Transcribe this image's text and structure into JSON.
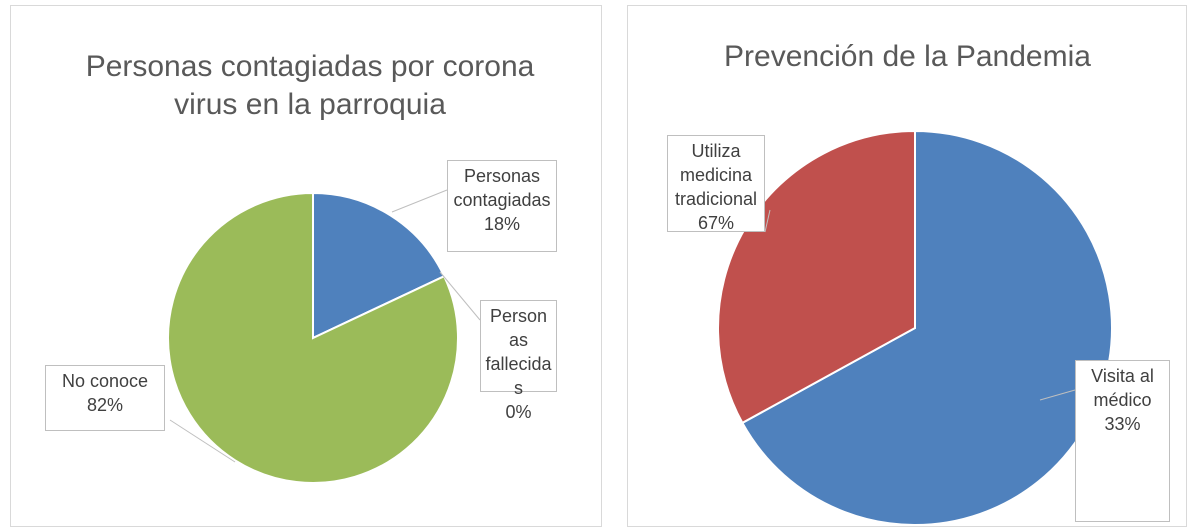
{
  "chart_data": [
    {
      "type": "pie",
      "title": "Personas contagiadas por corona virus en la parroquia",
      "categories": [
        "Personas contagiadas",
        "Personas fallecidas",
        "No conoce"
      ],
      "values": [
        18,
        0,
        82
      ],
      "value_labels": [
        "18%",
        "0%",
        "82%"
      ],
      "colors": [
        "#4f81bd",
        "#c0504d",
        "#9bbb59"
      ]
    },
    {
      "type": "pie",
      "title": "Prevención de la Pandemia",
      "categories": [
        "Utiliza medicina tradicional",
        "Visita al médico"
      ],
      "values": [
        67,
        33
      ],
      "value_labels": [
        "67%",
        "33%"
      ],
      "colors": [
        "#4f81bd",
        "#c0504d"
      ]
    }
  ]
}
